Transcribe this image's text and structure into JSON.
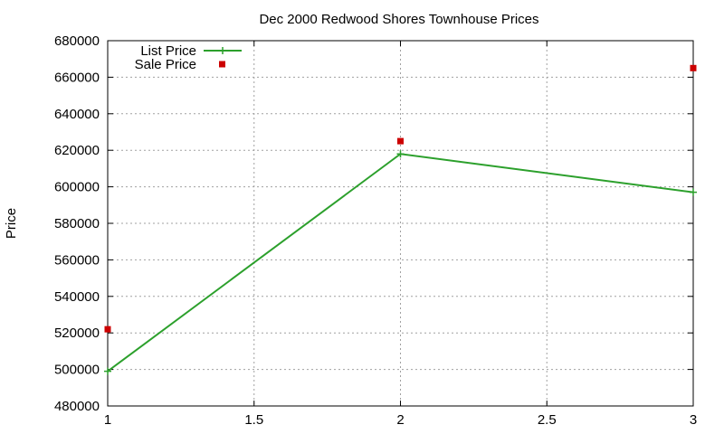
{
  "chart_data": {
    "type": "line",
    "title": "Dec 2000 Redwood Shores Townhouse Prices",
    "xlabel": "",
    "ylabel": "Price",
    "xlim": [
      1,
      3
    ],
    "ylim": [
      480000,
      680000
    ],
    "xticks": [
      "1",
      "1.5",
      "2",
      "2.5",
      "3"
    ],
    "xtick_values": [
      1,
      1.5,
      2,
      2.5,
      3
    ],
    "yticks": [
      "480000",
      "500000",
      "520000",
      "540000",
      "560000",
      "580000",
      "600000",
      "620000",
      "640000",
      "660000",
      "680000"
    ],
    "ytick_values": [
      480000,
      500000,
      520000,
      540000,
      560000,
      580000,
      600000,
      620000,
      640000,
      660000,
      680000
    ],
    "grid": true,
    "legend_position": "top-left",
    "series": [
      {
        "name": "List Price",
        "style": "linespoints",
        "marker": "plus",
        "color": "#2ca02c",
        "x": [
          1,
          2,
          3
        ],
        "y": [
          499000,
          618000,
          597000
        ]
      },
      {
        "name": "Sale Price",
        "style": "points",
        "marker": "square",
        "color": "#cc0000",
        "x": [
          1,
          2,
          3
        ],
        "y": [
          522000,
          625000,
          665000
        ]
      }
    ]
  }
}
